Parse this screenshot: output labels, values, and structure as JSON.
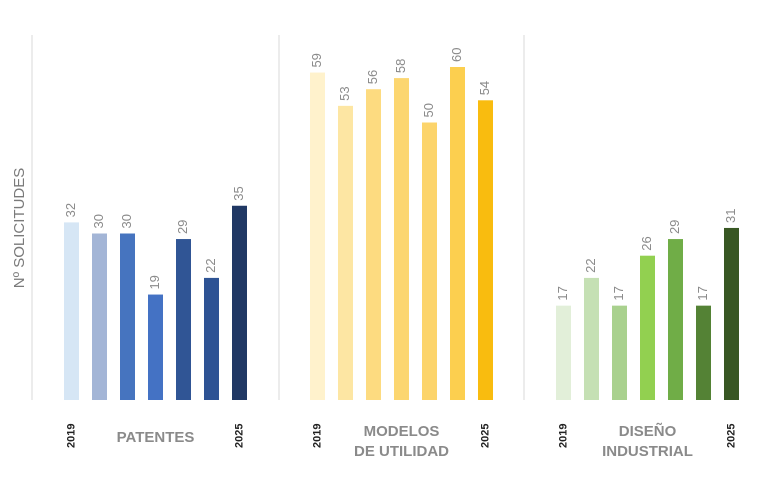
{
  "chart_data": {
    "type": "bar",
    "ylabel": "Nº SOLICITUDES",
    "groups": [
      {
        "name_lines": [
          "PATENTES"
        ],
        "first_year": "2019",
        "last_year": "2025",
        "values": [
          32,
          30,
          30,
          19,
          29,
          22,
          35
        ],
        "colors": [
          "#d6e6f5",
          "#a3b5d6",
          "#4674bf",
          "#4472c4",
          "#305595",
          "#2e5394",
          "#203864"
        ]
      },
      {
        "name_lines": [
          "MODELOS",
          "DE UTILIDAD"
        ],
        "first_year": "2019",
        "last_year": "2025",
        "values": [
          59,
          53,
          56,
          58,
          50,
          60,
          54
        ],
        "colors": [
          "#fff2cc",
          "#fde6a3",
          "#fddb80",
          "#fcd670",
          "#fcd46b",
          "#fccf4f",
          "#f9bc0f"
        ]
      },
      {
        "name_lines": [
          "DISEÑO",
          "INDUSTRIAL"
        ],
        "first_year": "2019",
        "last_year": "2025",
        "values": [
          17,
          22,
          17,
          26,
          29,
          17,
          31
        ],
        "colors": [
          "#e2efd9",
          "#c5e0b4",
          "#a9d18e",
          "#92d050",
          "#70ad47",
          "#548235",
          "#385723"
        ]
      }
    ]
  }
}
